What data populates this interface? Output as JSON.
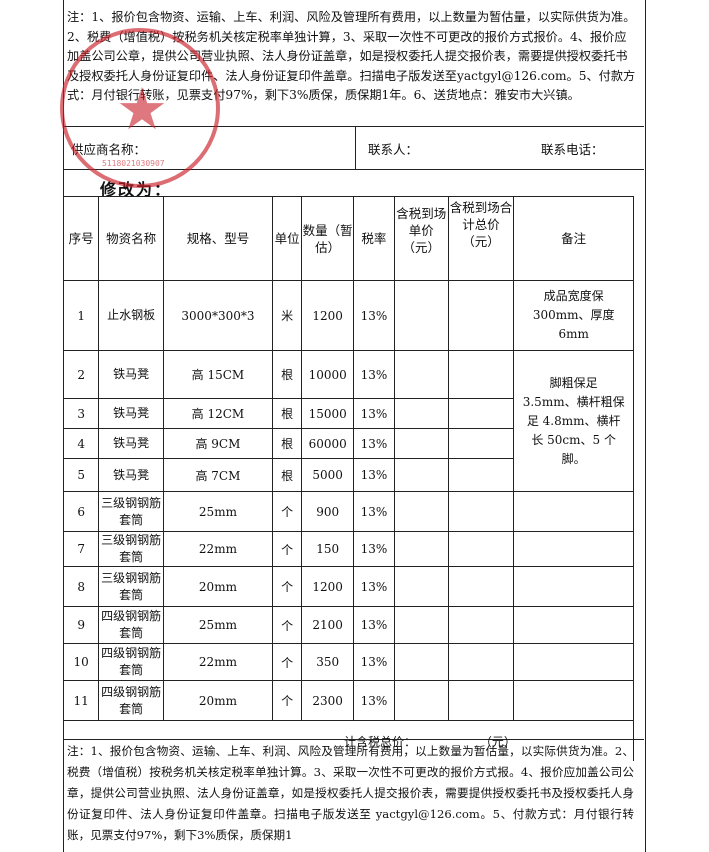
{
  "top_note": "注：1、报价包含物资、运输、上车、利润、风险及管理所有费用，以上数量为暂估量，以实际供货为准。2、税费（增值税）按税务机关核定税率单独计算，3、采取一次性不可更改的报价方式报价。4、报价应加盖公司公章，提供公司营业执照、法人身份证盖章，如是授权委托人提交报价表，需要提供授权委托书及授权委托人身份证复印件、法人身份证复印件盖章。扫描电子版发送至yactgyl@126.com。5、付款方式：月付银行转账，见票支付97%，剩下3%质保，质保期1年。6、送货地点：雅安市大兴镇。",
  "supplier": {
    "name_label": "供应商名称：",
    "contact_label": "联系人：",
    "phone_label": "联系电话："
  },
  "modified_label": "修改为：",
  "table": {
    "headers": {
      "seq": "序号",
      "name": "物资名称",
      "spec": "规格、型号",
      "unit": "单位",
      "qty": "数量（暂估）",
      "tax": "税率",
      "unit_price": "含税到场单价（元）",
      "total_price": "含税到场合计总价（元）",
      "remark": "备注"
    },
    "rows": [
      {
        "seq": "1",
        "name": "止水钢板",
        "spec": "3000*300*3",
        "unit": "米",
        "qty": "1200",
        "tax": "13%"
      },
      {
        "seq": "2",
        "name": "铁马凳",
        "spec": "高 15CM",
        "unit": "根",
        "qty": "10000",
        "tax": "13%"
      },
      {
        "seq": "3",
        "name": "铁马凳",
        "spec": "高 12CM",
        "unit": "根",
        "qty": "15000",
        "tax": "13%"
      },
      {
        "seq": "4",
        "name": "铁马凳",
        "spec": "高 9CM",
        "unit": "根",
        "qty": "60000",
        "tax": "13%"
      },
      {
        "seq": "5",
        "name": "铁马凳",
        "spec": "高 7CM",
        "unit": "根",
        "qty": "5000",
        "tax": "13%"
      },
      {
        "seq": "6",
        "name": "三级钢钢筋套筒",
        "spec": "25mm",
        "unit": "个",
        "qty": "900",
        "tax": "13%"
      },
      {
        "seq": "7",
        "name": "三级钢钢筋套筒",
        "spec": "22mm",
        "unit": "个",
        "qty": "150",
        "tax": "13%"
      },
      {
        "seq": "8",
        "name": "三级钢钢筋套筒",
        "spec": "20mm",
        "unit": "个",
        "qty": "1200",
        "tax": "13%"
      },
      {
        "seq": "9",
        "name": "四级钢钢筋套筒",
        "spec": "25mm",
        "unit": "个",
        "qty": "2100",
        "tax": "13%"
      },
      {
        "seq": "10",
        "name": "四级钢钢筋套筒",
        "spec": "22mm",
        "unit": "个",
        "qty": "350",
        "tax": "13%"
      },
      {
        "seq": "11",
        "name": "四级钢钢筋套筒",
        "spec": "20mm",
        "unit": "个",
        "qty": "2300",
        "tax": "13%"
      }
    ],
    "remark_1": "成品宽度保300mm、厚度6mm",
    "remark_2_5": "脚粗保足 3.5mm、横杆粗保足 4.8mm、横杆长 50cm、5 个脚。",
    "total_label": "计含税总价：",
    "total_unit": "（元）"
  },
  "bottom_note": "注：1、报价包含物资、运输、上车、利润、风险及管理所有费用，以上数量为暂估量，以实际供货为准。2、税费（增值税）按税务机关核定税率单独计算。3、采取一次性不可更改的报价方式报。4、报价应加盖公司公章，提供公司营业执照、法人身份证盖章，如是授权委托人提交报价表，需要提供授权委托书及授权委托人身份证复印件、法人身份证复印件盖章。扫描电子版发送至 yactgyl@126.com。5、付款方式：月付银行转账，见票支付97%，剩下3%质保，质保期1",
  "stamp": {
    "number": "5118021030907",
    "color": "#c81e28"
  }
}
